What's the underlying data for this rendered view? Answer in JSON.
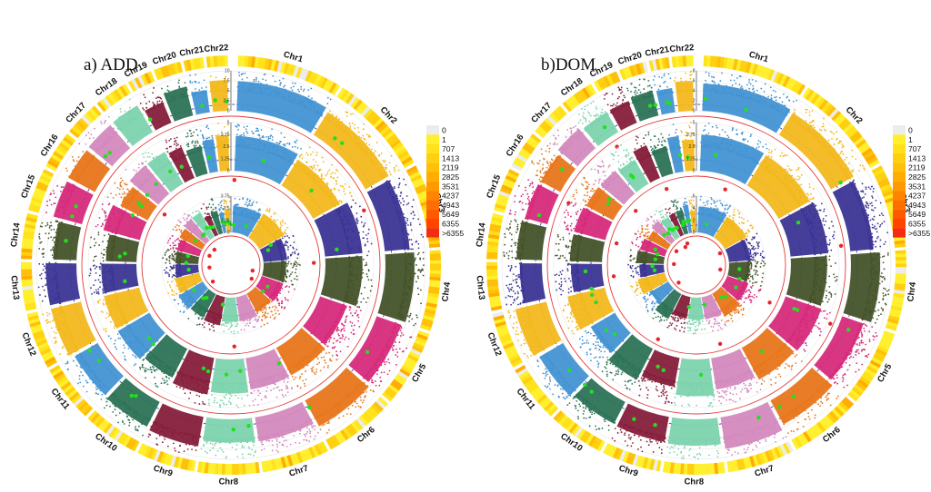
{
  "chart_data": [
    {
      "type": "circos-manhattan",
      "title": "a) ADD",
      "chromosomes": [
        "Chr1",
        "Chr2",
        "Chr3",
        "Chr4",
        "Chr5",
        "Chr6",
        "Chr7",
        "Chr8",
        "Chr9",
        "Chr10",
        "Chr11",
        "Chr12",
        "Chr13",
        "Chr14",
        "Chr15",
        "Chr16",
        "Chr17",
        "Chr18",
        "Chr19",
        "Chr20",
        "Chr21",
        "Chr22"
      ],
      "chromosome_colors": [
        "#4393d3",
        "#f2b81c",
        "#3c3595",
        "#45532a",
        "#d62a7b",
        "#e8761b",
        "#d389bd",
        "#7dd3ae",
        "#861f3b",
        "#2c7356",
        "#4393d3",
        "#f2b81c",
        "#3c3595",
        "#45532a",
        "#d62a7b",
        "#e8761b",
        "#d389bd",
        "#7dd3ae",
        "#861f3b",
        "#2c7356",
        "#4393d3",
        "#f2b81c"
      ],
      "tracks": [
        {
          "name": "outer",
          "ticks": [
            "0",
            "2.5",
            "5",
            "7.5",
            "10"
          ]
        },
        {
          "name": "middle",
          "ticks": [
            "0",
            "1.25",
            "2.5",
            "3.75",
            "5"
          ]
        },
        {
          "name": "inner",
          "ticks": [
            "0",
            "1.25",
            "2.5",
            "3.75"
          ]
        }
      ],
      "grid": true
    },
    {
      "type": "circos-manhattan",
      "title": "b)DOM",
      "chromosomes": [
        "Chr1",
        "Chr2",
        "Chr3",
        "Chr4",
        "Chr5",
        "Chr6",
        "Chr7",
        "Chr8",
        "Chr9",
        "Chr10",
        "Chr11",
        "Chr12",
        "Chr13",
        "Chr14",
        "Chr15",
        "Chr16",
        "Chr17",
        "Chr18",
        "Chr19",
        "Chr20",
        "Chr21",
        "Chr22"
      ],
      "chromosome_colors": [
        "#4393d3",
        "#f2b81c",
        "#3c3595",
        "#45532a",
        "#d62a7b",
        "#e8761b",
        "#d389bd",
        "#7dd3ae",
        "#861f3b",
        "#2c7356",
        "#4393d3",
        "#f2b81c",
        "#3c3595",
        "#45532a",
        "#d62a7b",
        "#e8761b",
        "#d389bd",
        "#7dd3ae",
        "#861f3b",
        "#2c7356",
        "#4393d3",
        "#f2b81c"
      ],
      "tracks": [
        {
          "name": "outer",
          "ticks": [
            "0",
            "2",
            "4",
            "6",
            "8"
          ]
        },
        {
          "name": "middle",
          "ticks": [
            "0",
            "1.25",
            "2.5",
            "3.75",
            "5"
          ]
        },
        {
          "name": "inner",
          "ticks": [
            "0",
            "2",
            "4",
            "6"
          ]
        }
      ],
      "grid": true
    }
  ],
  "legend": {
    "labels": [
      "0",
      "1",
      "707",
      "1413",
      "2119",
      "2825",
      "3531",
      "4237",
      "4943",
      "5649",
      "6355",
      ">6355"
    ],
    "colors": [
      "#ececec",
      "#ffef2e",
      "#ffe21a",
      "#ffd00f",
      "#ffc00a",
      "#ffad00",
      "#ff9900",
      "#ff8400",
      "#ff6e00",
      "#ff5a00",
      "#ff4400",
      "#f42c14"
    ]
  }
}
